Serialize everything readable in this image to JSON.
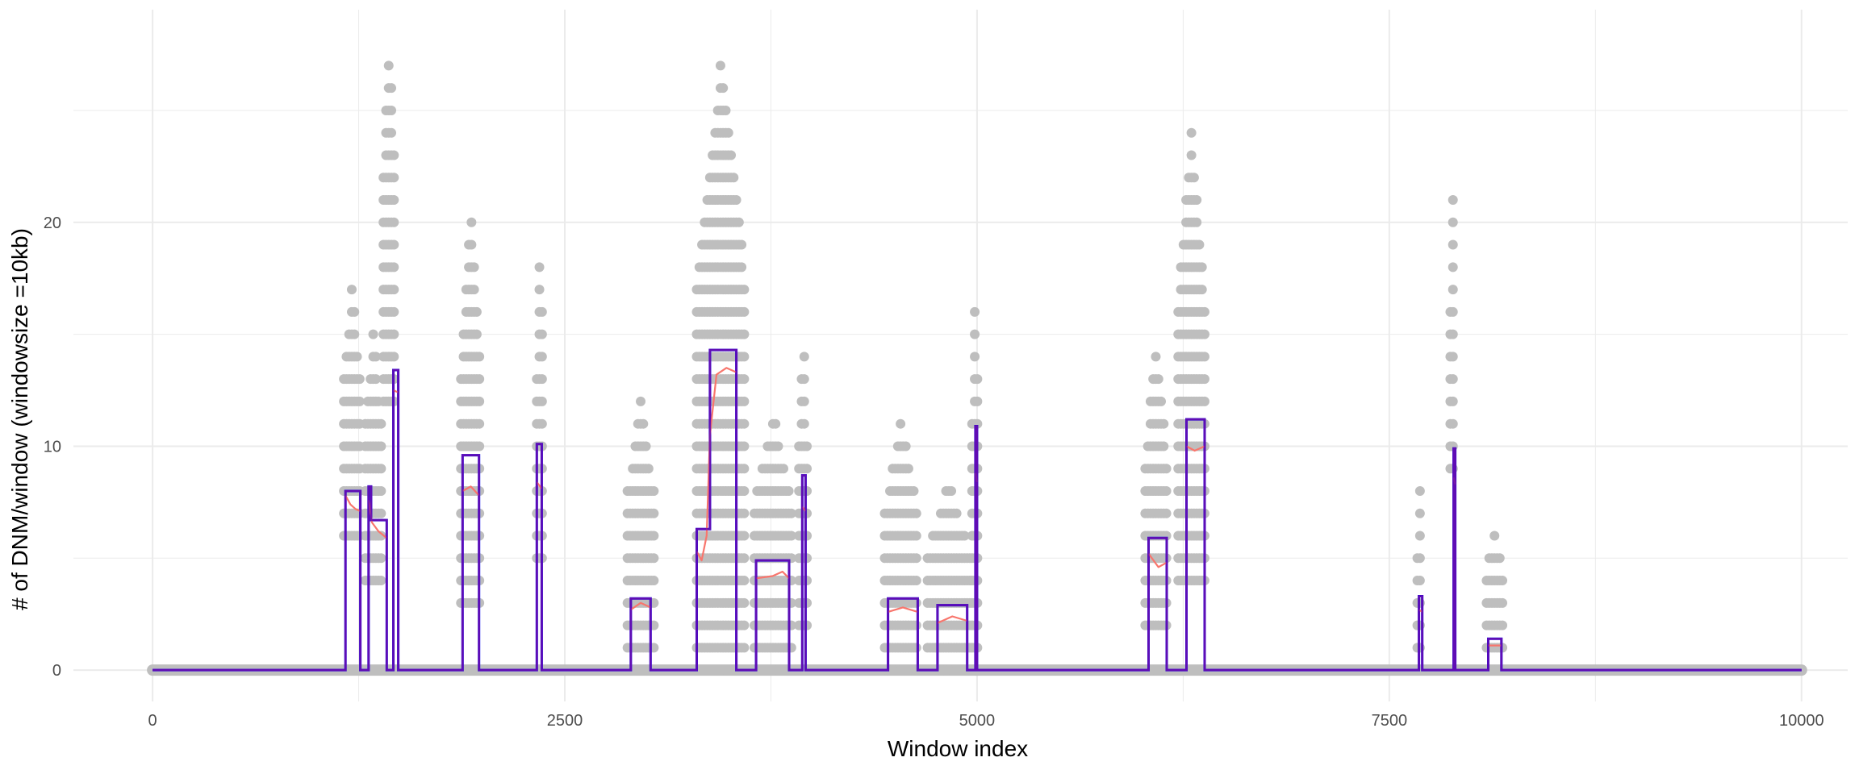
{
  "chart_data": {
    "type": "line",
    "title": "",
    "xlabel": "Window index",
    "ylabel": "# of DNM/window (windowsize =10kb)",
    "xlim": [
      -480,
      10280
    ],
    "ylim": [
      -1.4,
      29.5
    ],
    "x_ticks": [
      0,
      2500,
      5000,
      7500,
      10000
    ],
    "x_tick_labels": [
      "0",
      "2500",
      "5000",
      "7500",
      "10000"
    ],
    "y_ticks": [
      0,
      10,
      20
    ],
    "y_tick_labels": [
      "0",
      "10",
      "20"
    ],
    "grid": true,
    "legend": "none",
    "colors": {
      "points": "#bebebe",
      "segments": "#0000ee",
      "smoothed": "#f8766d",
      "signal": "#6a0dad",
      "grid": "#ebebeb"
    },
    "point_clusters": [
      {
        "x0": 1160,
        "x1": 1260,
        "max": 17,
        "min": 6
      },
      {
        "x0": 1290,
        "x1": 1390,
        "max": 15,
        "min": 4
      },
      {
        "x0": 1400,
        "x1": 1470,
        "max": 28,
        "min": 12
      },
      {
        "x0": 1870,
        "x1": 1990,
        "max": 20,
        "min": 3
      },
      {
        "x0": 2330,
        "x1": 2370,
        "max": 19,
        "min": 5
      },
      {
        "x0": 2880,
        "x1": 3040,
        "max": 12,
        "min": 1
      },
      {
        "x0": 3300,
        "x1": 3600,
        "max": 27,
        "min": 1
      },
      {
        "x0": 3650,
        "x1": 3880,
        "max": 11,
        "min": 1
      },
      {
        "x0": 3920,
        "x1": 3970,
        "max": 15,
        "min": 2
      },
      {
        "x0": 4440,
        "x1": 4640,
        "max": 11,
        "min": 0
      },
      {
        "x0": 4700,
        "x1": 4960,
        "max": 8,
        "min": 0
      },
      {
        "x0": 4970,
        "x1": 5010,
        "max": 17,
        "min": 1
      },
      {
        "x0": 6020,
        "x1": 6150,
        "max": 14,
        "min": 2
      },
      {
        "x0": 6220,
        "x1": 6380,
        "max": 24,
        "min": 4
      },
      {
        "x0": 7670,
        "x1": 7700,
        "max": 8,
        "min": 1
      },
      {
        "x0": 7870,
        "x1": 7900,
        "max": 21,
        "min": 9
      },
      {
        "x0": 8090,
        "x1": 8190,
        "max": 6,
        "min": 1
      }
    ],
    "series": [
      {
        "type": "step",
        "points": [
          [
            0,
            0
          ],
          [
            1170,
            0
          ],
          [
            1170,
            8
          ],
          [
            1260,
            8
          ],
          [
            1260,
            0
          ],
          [
            1310,
            0
          ],
          [
            1310,
            8.2
          ],
          [
            1325,
            8.2
          ],
          [
            1325,
            6.7
          ],
          [
            1420,
            6.7
          ],
          [
            1420,
            0
          ],
          [
            1460,
            0
          ],
          [
            1460,
            13.4
          ],
          [
            1490,
            13.4
          ],
          [
            1490,
            0
          ],
          [
            1880,
            0
          ],
          [
            1880,
            9.6
          ],
          [
            1980,
            9.6
          ],
          [
            1980,
            0
          ],
          [
            2330,
            0
          ],
          [
            2330,
            10.1
          ],
          [
            2360,
            10.1
          ],
          [
            2360,
            0
          ],
          [
            2900,
            0
          ],
          [
            2900,
            3.2
          ],
          [
            3020,
            3.2
          ],
          [
            3020,
            0
          ],
          [
            3300,
            0
          ],
          [
            3300,
            6.3
          ],
          [
            3380,
            6.3
          ],
          [
            3380,
            14.3
          ],
          [
            3540,
            14.3
          ],
          [
            3540,
            0
          ],
          [
            3660,
            0
          ],
          [
            3660,
            4.9
          ],
          [
            3860,
            4.9
          ],
          [
            3860,
            0
          ],
          [
            3940,
            0
          ],
          [
            3940,
            8.7
          ],
          [
            3960,
            8.7
          ],
          [
            3960,
            0
          ],
          [
            4460,
            0
          ],
          [
            4460,
            3.2
          ],
          [
            4640,
            3.2
          ],
          [
            4640,
            0
          ],
          [
            4760,
            0
          ],
          [
            4760,
            2.9
          ],
          [
            4940,
            2.9
          ],
          [
            4940,
            0
          ],
          [
            4990,
            0
          ],
          [
            4990,
            10.9
          ],
          [
            5000,
            10.9
          ],
          [
            5000,
            0
          ],
          [
            6040,
            0
          ],
          [
            6040,
            5.9
          ],
          [
            6150,
            5.9
          ],
          [
            6150,
            0
          ],
          [
            6270,
            0
          ],
          [
            6270,
            11.2
          ],
          [
            6380,
            11.2
          ],
          [
            6380,
            0
          ],
          [
            7680,
            0
          ],
          [
            7680,
            3.3
          ],
          [
            7700,
            3.3
          ],
          [
            7700,
            0
          ],
          [
            7890,
            0
          ],
          [
            7890,
            9.9
          ],
          [
            7900,
            9.9
          ],
          [
            7900,
            0
          ],
          [
            8100,
            0
          ],
          [
            8100,
            1.4
          ],
          [
            8180,
            1.4
          ],
          [
            8180,
            0
          ],
          [
            10000,
            0
          ]
        ]
      },
      {
        "type": "smoothed",
        "points": [
          [
            1170,
            0
          ],
          [
            1170,
            7.8
          ],
          [
            1200,
            7.4
          ],
          [
            1230,
            7.2
          ],
          [
            1260,
            7.1
          ],
          [
            1260,
            0
          ],
          [
            1310,
            0
          ],
          [
            1310,
            7.6
          ],
          [
            1330,
            6.6
          ],
          [
            1370,
            6.2
          ],
          [
            1420,
            5.9
          ],
          [
            1420,
            0
          ],
          [
            1460,
            0
          ],
          [
            1460,
            12.5
          ],
          [
            1490,
            12.4
          ],
          [
            1490,
            0
          ],
          [
            1880,
            0
          ],
          [
            1880,
            8.0
          ],
          [
            1930,
            8.2
          ],
          [
            1980,
            7.8
          ],
          [
            1980,
            0
          ],
          [
            2330,
            0
          ],
          [
            2330,
            8.4
          ],
          [
            2360,
            8.1
          ],
          [
            2360,
            0
          ],
          [
            2900,
            0
          ],
          [
            2900,
            2.7
          ],
          [
            2960,
            3.0
          ],
          [
            3020,
            2.8
          ],
          [
            3020,
            0
          ],
          [
            3300,
            0
          ],
          [
            3300,
            5.3
          ],
          [
            3330,
            4.9
          ],
          [
            3360,
            6.0
          ],
          [
            3380,
            10.5
          ],
          [
            3420,
            13.2
          ],
          [
            3480,
            13.5
          ],
          [
            3540,
            13.3
          ],
          [
            3540,
            0
          ],
          [
            3660,
            0
          ],
          [
            3660,
            4.1
          ],
          [
            3760,
            4.2
          ],
          [
            3820,
            4.4
          ],
          [
            3860,
            4.1
          ],
          [
            3860,
            0
          ],
          [
            3940,
            0
          ],
          [
            3940,
            7.3
          ],
          [
            3960,
            7.1
          ],
          [
            3960,
            0
          ],
          [
            4460,
            0
          ],
          [
            4460,
            2.6
          ],
          [
            4550,
            2.8
          ],
          [
            4640,
            2.6
          ],
          [
            4640,
            0
          ],
          [
            4760,
            0
          ],
          [
            4760,
            2.1
          ],
          [
            4850,
            2.4
          ],
          [
            4940,
            2.2
          ],
          [
            4940,
            0
          ],
          [
            4990,
            0
          ],
          [
            4990,
            8.8
          ],
          [
            5000,
            8.4
          ],
          [
            5000,
            0
          ],
          [
            6040,
            0
          ],
          [
            6040,
            5.2
          ],
          [
            6100,
            4.6
          ],
          [
            6150,
            4.8
          ],
          [
            6150,
            0
          ],
          [
            6270,
            0
          ],
          [
            6270,
            10.0
          ],
          [
            6320,
            9.8
          ],
          [
            6380,
            10.0
          ],
          [
            6380,
            0
          ],
          [
            7680,
            0
          ],
          [
            7680,
            2.7
          ],
          [
            7700,
            2.6
          ],
          [
            7700,
            0
          ],
          [
            7890,
            0
          ],
          [
            7890,
            8.6
          ],
          [
            7900,
            8.3
          ],
          [
            7900,
            0
          ],
          [
            8100,
            0
          ],
          [
            8100,
            1.1
          ],
          [
            8180,
            1.1
          ],
          [
            8180,
            0
          ]
        ]
      },
      {
        "type": "signal",
        "points": [
          [
            0,
            0
          ],
          [
            1170,
            0
          ],
          [
            1170,
            8
          ],
          [
            1260,
            8
          ],
          [
            1260,
            0
          ],
          [
            1310,
            0
          ],
          [
            1310,
            8.2
          ],
          [
            1325,
            8.2
          ],
          [
            1325,
            6.7
          ],
          [
            1420,
            6.7
          ],
          [
            1420,
            0
          ],
          [
            1460,
            0
          ],
          [
            1460,
            13.4
          ],
          [
            1490,
            13.4
          ],
          [
            1490,
            0
          ],
          [
            1880,
            0
          ],
          [
            1880,
            9.6
          ],
          [
            1980,
            9.6
          ],
          [
            1980,
            0
          ],
          [
            2330,
            0
          ],
          [
            2330,
            10.1
          ],
          [
            2360,
            10.1
          ],
          [
            2360,
            0
          ],
          [
            2900,
            0
          ],
          [
            2900,
            3.2
          ],
          [
            3020,
            3.2
          ],
          [
            3020,
            0
          ],
          [
            3300,
            0
          ],
          [
            3300,
            6.3
          ],
          [
            3380,
            6.3
          ],
          [
            3380,
            14.3
          ],
          [
            3540,
            14.3
          ],
          [
            3540,
            0
          ],
          [
            3660,
            0
          ],
          [
            3660,
            4.9
          ],
          [
            3860,
            4.9
          ],
          [
            3860,
            0
          ],
          [
            3940,
            0
          ],
          [
            3940,
            8.7
          ],
          [
            3960,
            8.7
          ],
          [
            3960,
            0
          ],
          [
            4460,
            0
          ],
          [
            4460,
            3.2
          ],
          [
            4640,
            3.2
          ],
          [
            4640,
            0
          ],
          [
            4760,
            0
          ],
          [
            4760,
            2.9
          ],
          [
            4940,
            2.9
          ],
          [
            4940,
            0
          ],
          [
            4990,
            0
          ],
          [
            4990,
            10.9
          ],
          [
            5000,
            10.9
          ],
          [
            5000,
            0
          ],
          [
            6040,
            0
          ],
          [
            6040,
            5.9
          ],
          [
            6150,
            5.9
          ],
          [
            6150,
            0
          ],
          [
            6270,
            0
          ],
          [
            6270,
            11.2
          ],
          [
            6380,
            11.2
          ],
          [
            6380,
            0
          ],
          [
            7680,
            0
          ],
          [
            7680,
            3.3
          ],
          [
            7700,
            3.3
          ],
          [
            7700,
            0
          ],
          [
            7890,
            0
          ],
          [
            7890,
            9.9
          ],
          [
            7900,
            9.9
          ],
          [
            7900,
            0
          ],
          [
            8100,
            0
          ],
          [
            8100,
            1.4
          ],
          [
            8180,
            1.4
          ],
          [
            8180,
            0
          ],
          [
            10000,
            0
          ]
        ]
      }
    ]
  }
}
